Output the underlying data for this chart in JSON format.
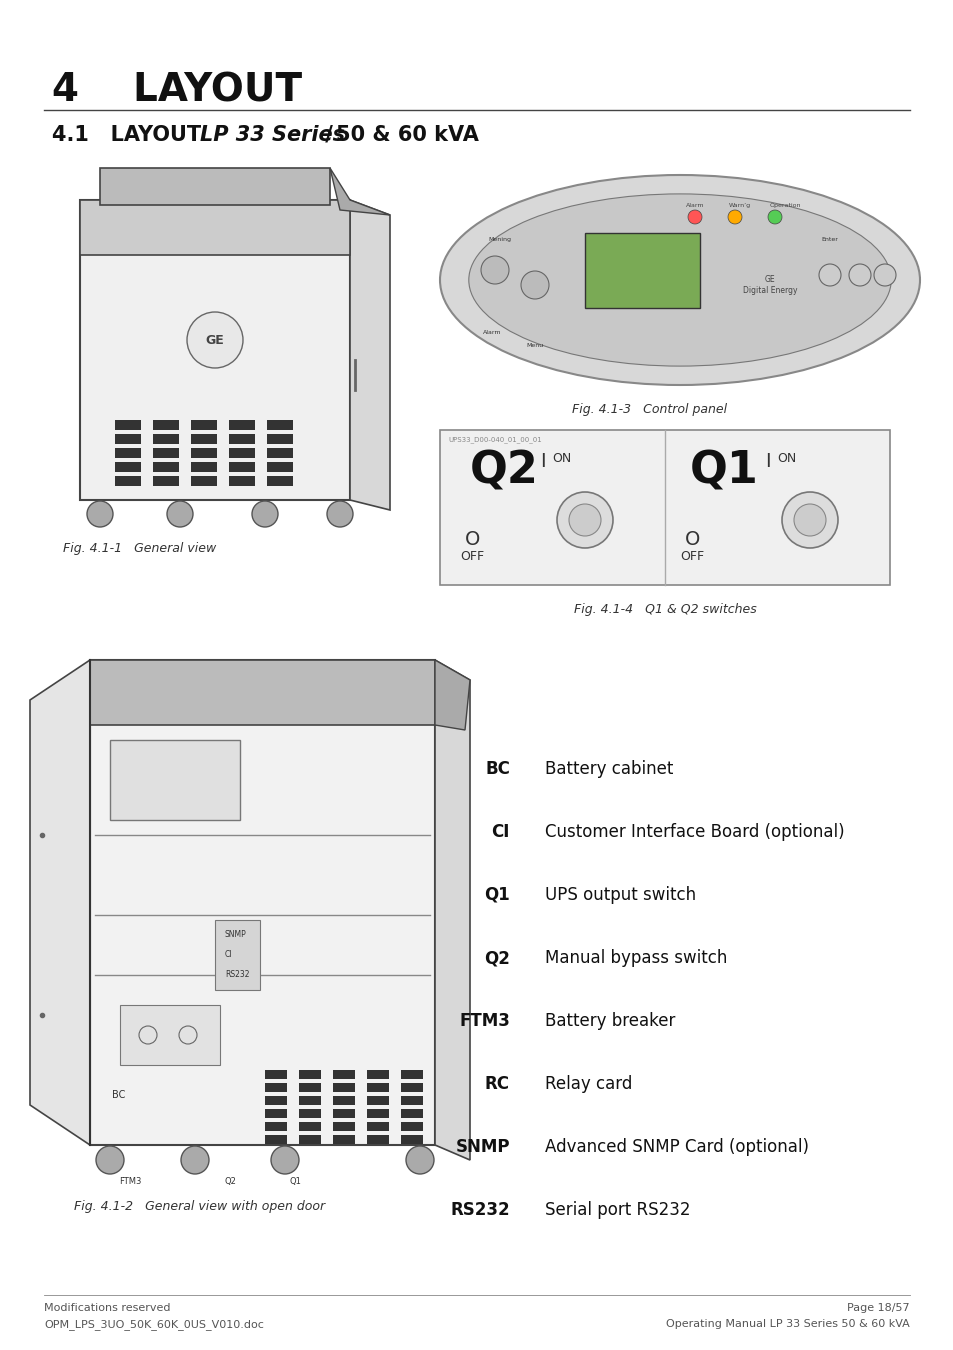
{
  "background_color": "#ffffff",
  "page_title": "4    LAYOUT",
  "fig_caption_1": "Fig. 4.1-1   General view",
  "fig_caption_2": "Fig. 4.1-3   Control panel",
  "fig_caption_3": "Fig. 4.1-4   Q1 & Q2 switches",
  "fig_caption_4": "Fig. 4.1-2   General view with open door",
  "legend_items": [
    {
      "code": "BC",
      "desc": "Battery cabinet"
    },
    {
      "code": "CI",
      "desc": "Customer Interface Board (optional)"
    },
    {
      "code": "Q1",
      "desc": "UPS output switch"
    },
    {
      "code": "Q2",
      "desc": "Manual bypass switch"
    },
    {
      "code": "FTM3",
      "desc": "Battery breaker"
    },
    {
      "code": "RC",
      "desc": "Relay card"
    },
    {
      "code": "SNMP",
      "desc": "Advanced SNMP Card (optional)"
    },
    {
      "code": "RS232",
      "desc": "Serial port RS232"
    }
  ],
  "footer_left_line1": "Modifications reserved",
  "footer_left_line2": "OPM_LPS_3UO_50K_60K_0US_V010.doc",
  "footer_right_line1": "Page 18/57",
  "footer_right_line2": "Operating Manual LP 33 Series 50 & 60 kVA"
}
